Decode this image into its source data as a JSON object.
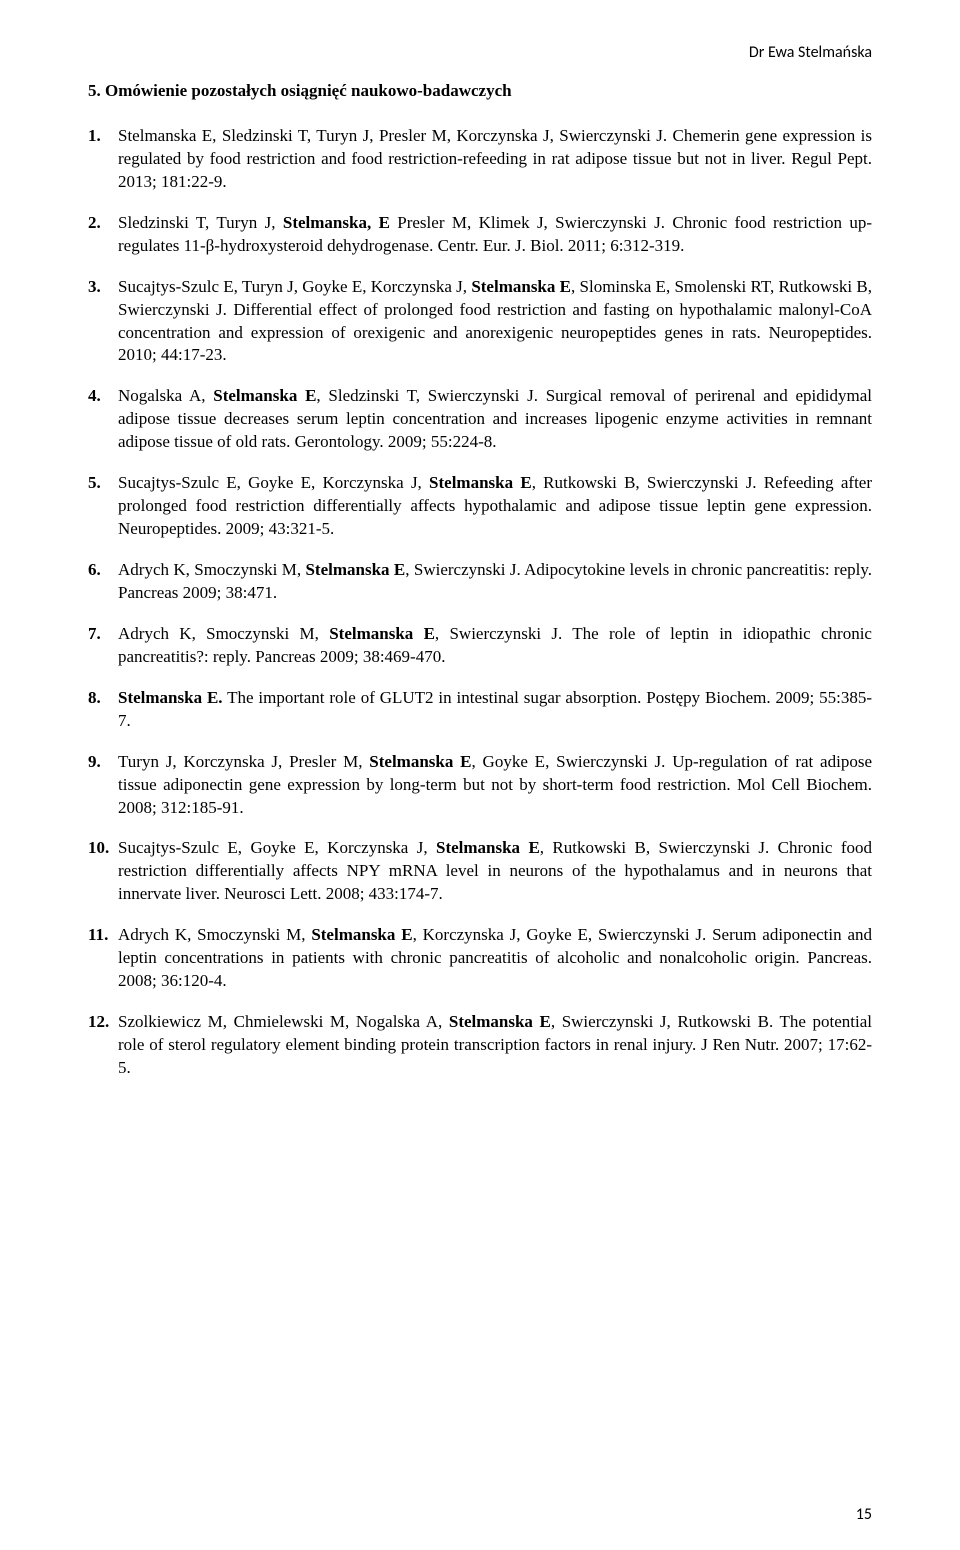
{
  "header": {
    "name": "Dr Ewa Stelmańska"
  },
  "section": {
    "title": "5. Omówienie pozostałych osiągnięć naukowo-badawczych"
  },
  "page_number": "15",
  "references": [
    {
      "html": "Stelmanska E, Sledzinski T, Turyn J, Presler M, Korczynska J, Swierczynski J. Chemerin gene expression is regulated by food restriction and food restriction-refeeding in rat adipose tissue but not in liver. Regul Pept. 2013; 181:22-9."
    },
    {
      "html": "Sledzinski T, Turyn J, <b>Stelmanska, E</b> Presler M, Klimek J, Swierczynski J. Chronic food restriction up-regulates 11-β-hydroxysteroid dehydrogenase. Centr. Eur. J. Biol. 2011; 6:312-319."
    },
    {
      "html": "Sucajtys-Szulc E, Turyn J, Goyke E, Korczynska J, <b>Stelmanska E</b>, Slominska E, Smolenski RT, Rutkowski B, Swierczynski J. Differential effect of prolonged food restriction and fasting on hypothalamic malonyl-CoA concentration and expression of orexigenic and anorexigenic neuropeptides genes in rats. Neuropeptides. 2010; 44:17-23."
    },
    {
      "html": "Nogalska A, <b>Stelmanska E</b>, Sledzinski T, Swierczynski J. Surgical removal of perirenal and epididymal adipose tissue decreases serum leptin concentration and increases lipogenic enzyme activities in remnant adipose tissue of old rats. Gerontology. 2009; 55:224-8."
    },
    {
      "html": "Sucajtys-Szulc E, Goyke E, Korczynska J, <b>Stelmanska E</b>, Rutkowski B, Swierczynski J. Refeeding after prolonged food restriction differentially affects hypothalamic and adipose tissue leptin gene expression. Neuropeptides. 2009; 43:321-5."
    },
    {
      "html": "Adrych K, Smoczynski M, <b>Stelmanska E</b>, Swierczynski J. Adipocytokine levels in chronic pancreatitis: reply. Pancreas 2009; 38:471."
    },
    {
      "html": "Adrych K, Smoczynski M, <b>Stelmanska E</b>, Swierczynski J. The role of leptin in idiopathic chronic pancreatitis?: reply. Pancreas 2009; 38:469-470."
    },
    {
      "html": "<b>Stelmanska E.</b> The important role of GLUT2 in intestinal sugar absorption. Postępy Biochem. 2009; 55:385-7."
    },
    {
      "html": "Turyn J, Korczynska J, Presler M, <b>Stelmanska E</b>, Goyke E, Swierczynski J. Up-regulation of rat adipose tissue adiponectin gene expression by long-term but not by short-term food restriction. Mol Cell Biochem. 2008; 312:185-91."
    },
    {
      "html": "Sucajtys-Szulc E, Goyke E, Korczynska J, <b>Stelmanska E</b>, Rutkowski B, Swierczynski J. Chronic food restriction differentially affects NPY mRNA level in neurons of the hypothalamus and in neurons that innervate liver. Neurosci Lett. 2008; 433:174-7."
    },
    {
      "html": "Adrych K, Smoczynski M, <b>Stelmanska E</b>, Korczynska J, Goyke E, Swierczynski J. Serum adiponectin and leptin concentrations in patients with chronic pancreatitis of alcoholic and nonalcoholic origin. Pancreas. 2008; 36:120-4."
    },
    {
      "html": "Szolkiewicz M, Chmielewski M, Nogalska A, <b>Stelmanska E</b>, Swierczynski J, Rutkowski B. The potential role of sterol regulatory element binding protein transcription factors in renal injury. J Ren Nutr. 2007; 17:62-5."
    }
  ]
}
